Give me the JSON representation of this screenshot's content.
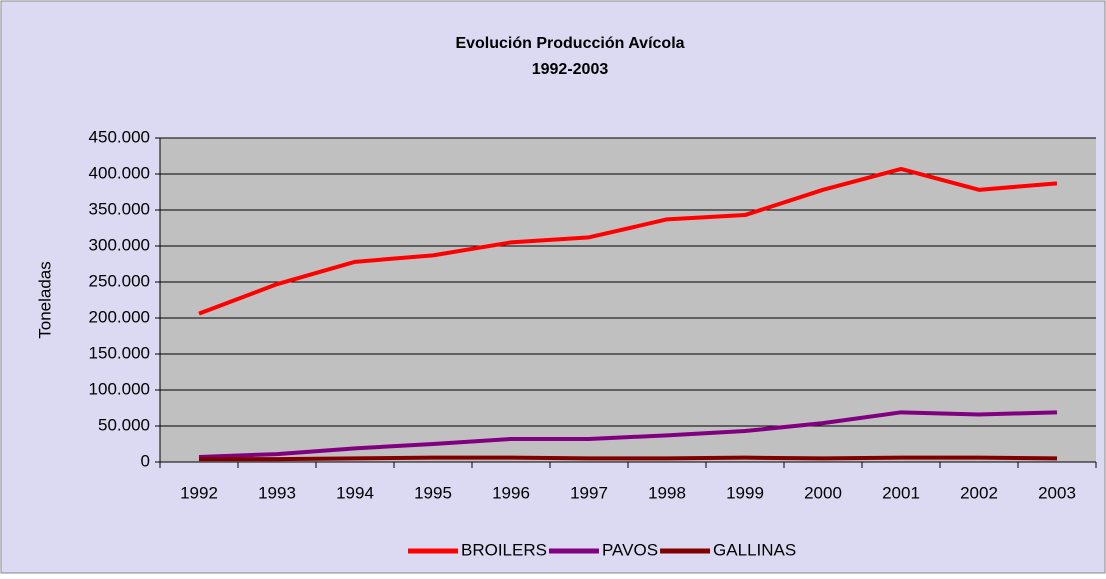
{
  "chart_data": {
    "type": "line",
    "title": "Evolución Producción Avícola",
    "subtitle": "1992-2003",
    "y_label": "Toneladas",
    "categories": [
      "1992",
      "1993",
      "1994",
      "1995",
      "1996",
      "1997",
      "1998",
      "1999",
      "2000",
      "2001",
      "2002",
      "2003"
    ],
    "series": [
      {
        "name": "BROILERS",
        "color": "#ff0000",
        "values": [
          206000,
          247000,
          278000,
          287000,
          305000,
          312000,
          337000,
          343000,
          378000,
          407000,
          378000,
          387000
        ]
      },
      {
        "name": "PAVOS",
        "color": "#800080",
        "values": [
          7000,
          11000,
          19000,
          25000,
          32000,
          32000,
          37000,
          43000,
          54000,
          69000,
          66000,
          69000
        ]
      },
      {
        "name": "GALLINAS",
        "color": "#800000",
        "values": [
          4000,
          4000,
          5000,
          6000,
          6000,
          5000,
          5000,
          6000,
          5000,
          6000,
          6000,
          5000
        ]
      }
    ],
    "ylim": [
      0,
      450000
    ],
    "yticks": [
      0,
      {
        "value": 50000,
        "label": "50.000"
      },
      {
        "value": 100000,
        "label": "100.000"
      },
      {
        "value": 150000,
        "label": "150.000"
      },
      {
        "value": 200000,
        "label": "200.000"
      },
      {
        "value": 250000,
        "label": "250.000"
      },
      {
        "value": 300000,
        "label": "300.000"
      },
      {
        "value": 350000,
        "label": "350.000"
      },
      {
        "value": 400000,
        "label": "400.000"
      },
      {
        "value": 450000,
        "label": "450.000"
      }
    ],
    "grid": true,
    "legend": "bottom"
  }
}
